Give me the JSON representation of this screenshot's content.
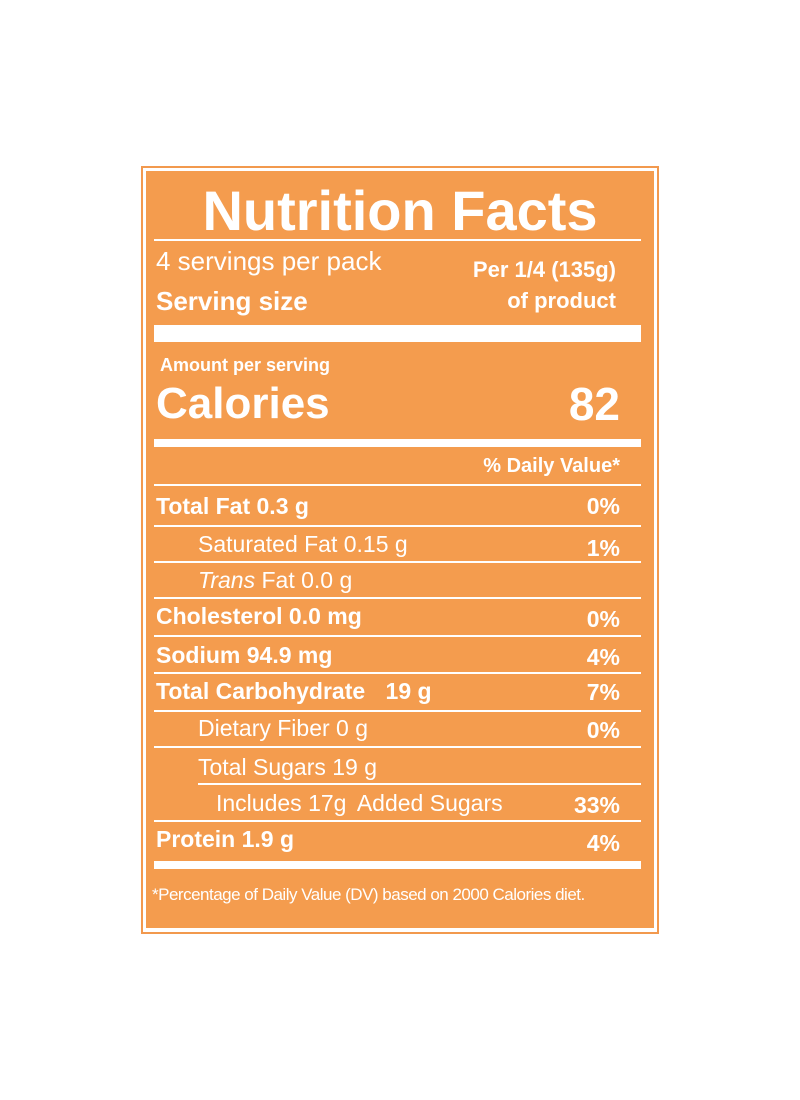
{
  "label": {
    "title": "Nutrition Facts",
    "servings_per_pack": "4 servings per pack",
    "serving_size_label": "Serving size",
    "serving_size_value_line1": "Per 1/4 (135g)",
    "serving_size_value_line2": "of product",
    "amount_per_serving": "Amount per serving",
    "calories_label": "Calories",
    "calories_value": "82",
    "dv_header": "% Daily Value*",
    "nutrients": [
      {
        "name": "Total Fat",
        "amount": "0.3 g",
        "dv": "0%"
      },
      {
        "name": "Saturated Fat",
        "amount": "0.15 g",
        "dv": "1%"
      },
      {
        "name_italic": "Trans",
        "name": "Fat",
        "amount": "0.0 g",
        "dv": ""
      },
      {
        "name": "Cholesterol",
        "amount": "0.0 mg",
        "dv": "0%"
      },
      {
        "name": "Sodium",
        "amount": "94.9 mg",
        "dv": "4%"
      },
      {
        "name": "Total Carbohydrate",
        "amount": "19 g",
        "dv": "7%"
      },
      {
        "name": "Dietary Fiber",
        "amount": "0 g",
        "dv": "0%"
      },
      {
        "name": "Total Sugars",
        "amount": "19 g",
        "dv": ""
      },
      {
        "name_prefix": "Includes",
        "amount": "17g",
        "name": "Added Sugars",
        "dv": "33%"
      },
      {
        "name": "Protein",
        "amount": "1.9 g",
        "dv": "4%"
      }
    ],
    "footnote": "*Percentage of Daily Value (DV) based on 2000 Calories diet."
  },
  "colors": {
    "panel": "#F49C4E",
    "border": "#F2994E",
    "text": "#ffffff"
  }
}
